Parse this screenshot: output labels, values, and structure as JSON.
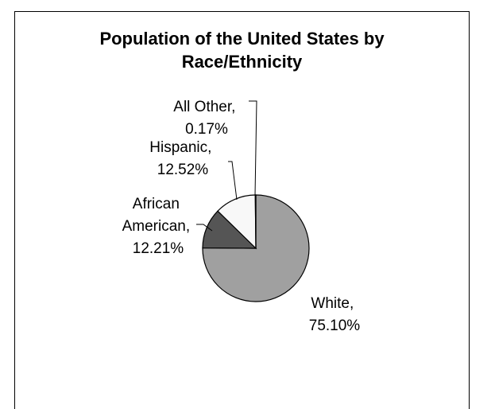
{
  "chart_data": {
    "type": "pie",
    "title": [
      "Population of the United States by",
      "Race/Ethnicity"
    ],
    "slices": [
      {
        "label": "White",
        "value": 75.1,
        "display": "75.10%",
        "color": "#a0a0a0"
      },
      {
        "label": "African American",
        "value": 12.21,
        "display": "12.21%",
        "color": "#555555"
      },
      {
        "label": "Hispanic",
        "value": 12.52,
        "display": "12.52%",
        "color": "#f8f8f8"
      },
      {
        "label": "All Other",
        "value": 0.17,
        "display": "0.17%",
        "color": "#e0e0e0"
      }
    ],
    "legend": "none",
    "data_labels": [
      {
        "lines": [
          "White,",
          "75.10%"
        ]
      },
      {
        "lines": [
          "African",
          "American,",
          "12.21%"
        ]
      },
      {
        "lines": [
          "Hispanic,",
          "12.52%"
        ]
      },
      {
        "lines": [
          "All Other,",
          "0.17%"
        ]
      }
    ]
  }
}
